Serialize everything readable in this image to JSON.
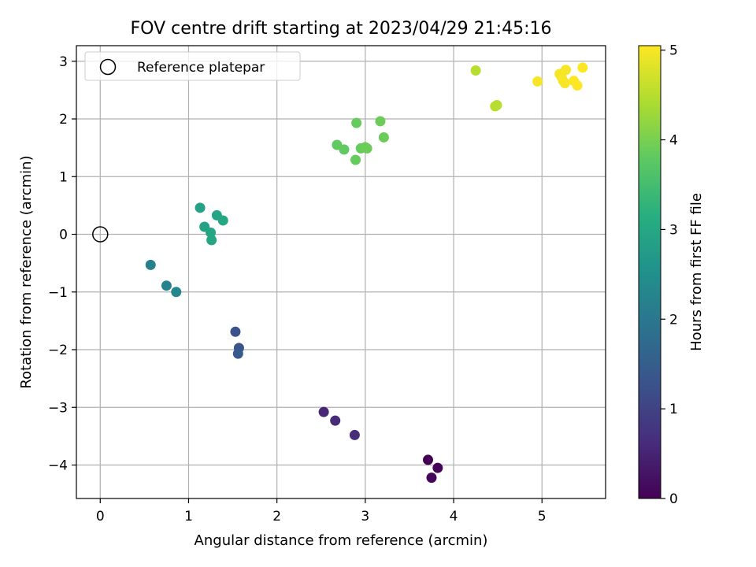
{
  "chart_data": {
    "type": "scatter",
    "title": "FOV centre drift starting at 2023/04/29 21:45:16",
    "xlabel": "Angular distance from reference (arcmin)",
    "ylabel": "Rotation from reference (arcmin)",
    "xlim": [
      -0.27,
      5.72
    ],
    "ylim": [
      -4.58,
      3.27
    ],
    "xticks": [
      "0",
      "1",
      "2",
      "3",
      "4",
      "5"
    ],
    "yticks": [
      "−4",
      "−3",
      "−2",
      "−1",
      "0",
      "1",
      "2",
      "3"
    ],
    "grid": true,
    "legend": {
      "position": "top-left",
      "entries": [
        "Reference platepar"
      ]
    },
    "reference_point": {
      "x": 0,
      "y": 0
    },
    "colorbar": {
      "label": "Hours from first FF file",
      "min": 0,
      "max": 5.05,
      "ticks": [
        "0",
        "1",
        "2",
        "3",
        "4",
        "5"
      ],
      "colormap": "viridis"
    },
    "points": [
      {
        "x": 3.71,
        "y": -3.91,
        "h": 0.0
      },
      {
        "x": 3.82,
        "y": -4.05,
        "h": 0.05
      },
      {
        "x": 3.75,
        "y": -4.22,
        "h": 0.08
      },
      {
        "x": 2.53,
        "y": -3.08,
        "h": 0.55
      },
      {
        "x": 2.66,
        "y": -3.23,
        "h": 0.6
      },
      {
        "x": 2.88,
        "y": -3.48,
        "h": 0.65
      },
      {
        "x": 1.53,
        "y": -1.69,
        "h": 1.3
      },
      {
        "x": 1.57,
        "y": -1.97,
        "h": 1.35
      },
      {
        "x": 1.56,
        "y": -2.07,
        "h": 1.4
      },
      {
        "x": 0.57,
        "y": -0.53,
        "h": 2.2
      },
      {
        "x": 0.75,
        "y": -0.89,
        "h": 2.25
      },
      {
        "x": 0.86,
        "y": -1.0,
        "h": 2.3
      },
      {
        "x": 1.13,
        "y": 0.46,
        "h": 2.9
      },
      {
        "x": 1.18,
        "y": 0.13,
        "h": 2.9
      },
      {
        "x": 1.25,
        "y": 0.03,
        "h": 2.95
      },
      {
        "x": 1.26,
        "y": -0.1,
        "h": 2.95
      },
      {
        "x": 1.32,
        "y": 0.33,
        "h": 2.95
      },
      {
        "x": 1.39,
        "y": 0.24,
        "h": 3.0
      },
      {
        "x": 2.68,
        "y": 1.55,
        "h": 3.8
      },
      {
        "x": 2.76,
        "y": 1.47,
        "h": 3.8
      },
      {
        "x": 2.89,
        "y": 1.29,
        "h": 3.85
      },
      {
        "x": 2.9,
        "y": 1.93,
        "h": 3.85
      },
      {
        "x": 2.95,
        "y": 1.49,
        "h": 3.85
      },
      {
        "x": 3.0,
        "y": 1.51,
        "h": 3.9
      },
      {
        "x": 3.02,
        "y": 1.49,
        "h": 3.9
      },
      {
        "x": 3.17,
        "y": 1.96,
        "h": 3.9
      },
      {
        "x": 3.21,
        "y": 1.68,
        "h": 3.9
      },
      {
        "x": 4.25,
        "y": 2.84,
        "h": 4.5
      },
      {
        "x": 4.47,
        "y": 2.22,
        "h": 4.5
      },
      {
        "x": 4.49,
        "y": 2.24,
        "h": 4.5
      },
      {
        "x": 4.95,
        "y": 2.65,
        "h": 5.0
      },
      {
        "x": 5.2,
        "y": 2.78,
        "h": 5.0
      },
      {
        "x": 5.22,
        "y": 2.73,
        "h": 5.0
      },
      {
        "x": 5.24,
        "y": 2.66,
        "h": 5.0
      },
      {
        "x": 5.26,
        "y": 2.62,
        "h": 5.0
      },
      {
        "x": 5.27,
        "y": 2.85,
        "h": 5.0
      },
      {
        "x": 5.36,
        "y": 2.66,
        "h": 5.05
      },
      {
        "x": 5.4,
        "y": 2.58,
        "h": 5.05
      },
      {
        "x": 5.46,
        "y": 2.89,
        "h": 5.05
      }
    ]
  }
}
